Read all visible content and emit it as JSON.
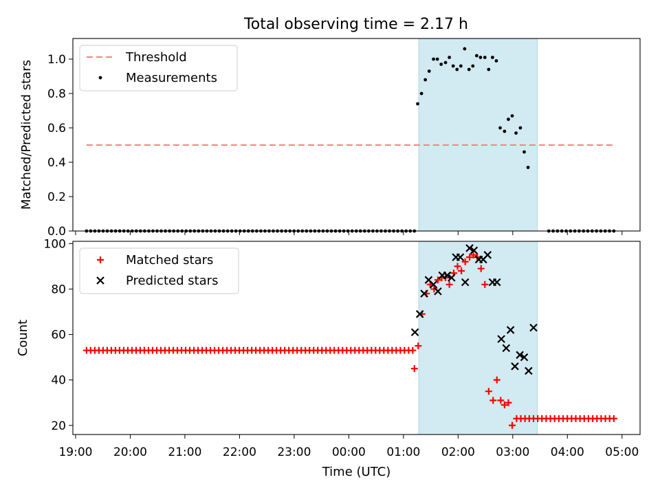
{
  "figure": {
    "title": "Total observing time = 2.17 h"
  },
  "chart_data": [
    {
      "type": "scatter",
      "ylabel": "Matched/Predicted stars",
      "xlabel": "",
      "ylim": [
        0,
        1.12
      ],
      "yticks": [
        "0.0",
        "0.2",
        "0.4",
        "0.6",
        "0.8",
        "1.0"
      ],
      "grid": false,
      "legend_position": "top-left",
      "observing_window": {
        "start": 1.28,
        "end": 3.45,
        "color": "#add8e6"
      },
      "threshold": {
        "name": "Threshold",
        "value": 0.5,
        "x_start": -4.8,
        "x_end": 4.85,
        "color": "#ff7f7f",
        "style": "dashed"
      },
      "series": [
        {
          "name": "Measurements",
          "marker": "dot",
          "color": "#000000",
          "points": [
            [
              1.26,
              0.74
            ],
            [
              1.33,
              0.8
            ],
            [
              1.4,
              0.88
            ],
            [
              1.47,
              0.93
            ],
            [
              1.55,
              1.0
            ],
            [
              1.62,
              1.0
            ],
            [
              1.69,
              0.97
            ],
            [
              1.77,
              0.98
            ],
            [
              1.84,
              1.01
            ],
            [
              1.91,
              0.96
            ],
            [
              1.98,
              0.94
            ],
            [
              2.05,
              0.96
            ],
            [
              2.12,
              1.06
            ],
            [
              2.2,
              0.94
            ],
            [
              2.27,
              0.96
            ],
            [
              2.34,
              1.02
            ],
            [
              2.41,
              1.01
            ],
            [
              2.49,
              1.01
            ],
            [
              2.56,
              0.94
            ],
            [
              2.63,
              1.01
            ],
            [
              2.7,
              0.99
            ],
            [
              2.77,
              0.6
            ],
            [
              2.85,
              0.58
            ],
            [
              2.92,
              0.65
            ],
            [
              2.99,
              0.67
            ],
            [
              3.06,
              0.57
            ],
            [
              3.14,
              0.6
            ],
            [
              3.21,
              0.46
            ],
            [
              3.28,
              0.37
            ]
          ],
          "zero_runs": [
            {
              "from": -4.8,
              "to": 1.2,
              "count": 80
            },
            {
              "from": 3.66,
              "to": 4.85,
              "count": 16
            }
          ]
        }
      ]
    },
    {
      "type": "scatter",
      "ylabel": "Count",
      "xlabel": "Time (UTC)",
      "ylim": [
        16,
        101
      ],
      "yticks": [
        "20",
        "40",
        "60",
        "80",
        "100"
      ],
      "xticks": [
        "19:00",
        "20:00",
        "21:00",
        "22:00",
        "23:00",
        "00:00",
        "01:00",
        "02:00",
        "03:00",
        "04:00",
        "05:00"
      ],
      "grid": false,
      "legend_position": "top-left",
      "observing_window": {
        "start": 1.28,
        "end": 3.45,
        "color": "#add8e6"
      },
      "series": [
        {
          "name": "Matched stars",
          "marker": "plus",
          "color": "#ff0000",
          "points": [
            [
              1.2,
              45
            ],
            [
              1.27,
              55
            ],
            [
              1.34,
              69
            ],
            [
              1.42,
              78
            ],
            [
              1.49,
              82
            ],
            [
              1.56,
              80
            ],
            [
              1.63,
              84
            ],
            [
              1.7,
              85
            ],
            [
              1.77,
              85
            ],
            [
              1.84,
              82
            ],
            [
              1.92,
              87
            ],
            [
              1.99,
              90
            ],
            [
              2.06,
              88
            ],
            [
              2.13,
              92
            ],
            [
              2.21,
              94
            ],
            [
              2.28,
              95
            ],
            [
              2.35,
              94
            ],
            [
              2.42,
              89
            ],
            [
              2.49,
              82
            ],
            [
              2.56,
              35
            ],
            [
              2.64,
              31
            ],
            [
              2.71,
              40
            ],
            [
              2.78,
              31
            ],
            [
              2.85,
              29
            ],
            [
              2.92,
              30
            ],
            [
              2.99,
              20
            ]
          ],
          "flat_runs": [
            {
              "from": -4.8,
              "to": 1.17,
              "count": 80,
              "value": 53
            },
            {
              "from": 3.07,
              "to": 4.85,
              "count": 24,
              "value": 23
            }
          ]
        },
        {
          "name": "Predicted stars",
          "marker": "cross",
          "color": "#000000",
          "points": [
            [
              1.21,
              61
            ],
            [
              1.3,
              69
            ],
            [
              1.38,
              78
            ],
            [
              1.46,
              84
            ],
            [
              1.55,
              82
            ],
            [
              1.63,
              79
            ],
            [
              1.71,
              86
            ],
            [
              1.8,
              86
            ],
            [
              1.88,
              85
            ],
            [
              1.96,
              94
            ],
            [
              2.04,
              94
            ],
            [
              2.13,
              83
            ],
            [
              2.21,
              98
            ],
            [
              2.29,
              97
            ],
            [
              2.38,
              93
            ],
            [
              2.46,
              93
            ],
            [
              2.54,
              95
            ],
            [
              2.63,
              83
            ],
            [
              2.71,
              83
            ],
            [
              2.79,
              58
            ],
            [
              2.88,
              54
            ],
            [
              2.96,
              62
            ],
            [
              3.04,
              46
            ],
            [
              3.13,
              51
            ],
            [
              3.21,
              50
            ],
            [
              3.29,
              44
            ],
            [
              3.38,
              63
            ]
          ]
        }
      ]
    }
  ]
}
